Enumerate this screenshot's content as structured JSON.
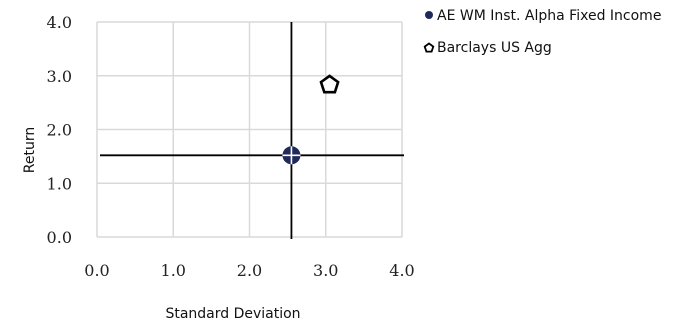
{
  "chart_data": {
    "type": "scatter",
    "xlabel": "Standard Deviation",
    "ylabel": "Return",
    "xlim": [
      0,
      4
    ],
    "ylim": [
      0,
      4
    ],
    "xticks": [
      "0.0",
      "1.0",
      "2.0",
      "3.0",
      "4.0"
    ],
    "yticks": [
      "0.0",
      "1.0",
      "2.0",
      "3.0",
      "4.0"
    ],
    "grid": true,
    "legend_position": "top-right",
    "series": [
      {
        "name": "AE WM Inst. Alpha Fixed Income",
        "marker": "circle-with-crosshair",
        "color": "#1f2a5a",
        "points": [
          {
            "x": 2.55,
            "y": 1.52
          }
        ]
      },
      {
        "name": "Barclays US Agg",
        "marker": "pentagon",
        "color": "#000000",
        "points": [
          {
            "x": 3.05,
            "y": 2.83
          }
        ]
      }
    ]
  }
}
